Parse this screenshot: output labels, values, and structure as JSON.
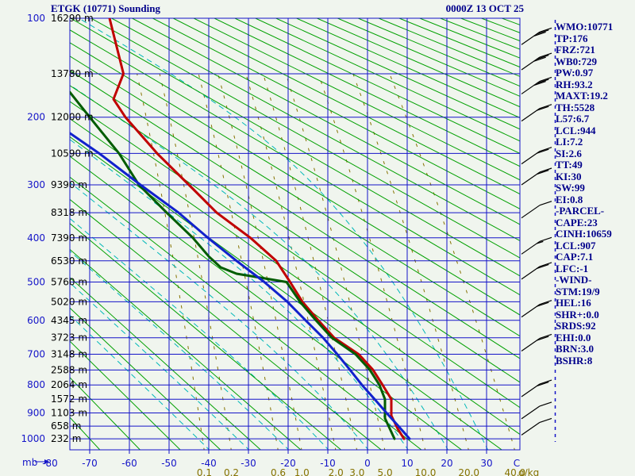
{
  "header": {
    "title": "ETGK (10771) Sounding",
    "datetime": "0000Z 13 OCT 25"
  },
  "stats_panel": {
    "lines": [
      "WMO:10771",
      "TP:176",
      "FRZ:721",
      "WB0:729",
      "PW:0.97",
      "RH:93.2",
      "MAXT:19.2",
      "TH:5528",
      "L57:6.7",
      "LCL:944",
      "LI:7.2",
      "SI:2.6",
      "TT:49",
      "KI:30",
      "SW:99",
      "EI:0.8",
      "-PARCEL-",
      "CAPE:23",
      "CINH:10659",
      "LCL:907",
      "CAP:7.1",
      "LFC:-1",
      "-WIND-",
      "STM:19/9",
      "HEL:16",
      "SHR+:0.0",
      "SRDS:92",
      "EHI:0.0",
      "BRN:3.0",
      "BSHR:8"
    ]
  },
  "chart_data": {
    "type": "line",
    "diagram": "stuve-sounding",
    "title": "ETGK (10771) Sounding",
    "x_axis": {
      "unit": "C",
      "ticks": [
        -80,
        -70,
        -60,
        -50,
        -40,
        -30,
        -20,
        -10,
        0,
        10,
        20,
        30
      ],
      "range": [
        -75,
        38.4
      ],
      "axis_prefix_label": "mb"
    },
    "y_axis": {
      "unit": "mb",
      "scale": "pressure^0.286 (stuve)",
      "range": [
        100,
        1050
      ],
      "ticks": [
        100,
        200,
        300,
        400,
        500,
        600,
        700,
        800,
        900,
        1000
      ],
      "gridlines_mb": [
        100,
        150,
        200,
        250,
        300,
        350,
        400,
        450,
        500,
        550,
        600,
        650,
        700,
        750,
        800,
        850,
        900,
        950,
        1000
      ]
    },
    "height_labels_m": [
      [
        100,
        16290
      ],
      [
        150,
        13780
      ],
      [
        200,
        12000
      ],
      [
        250,
        10590
      ],
      [
        300,
        9390
      ],
      [
        350,
        8318
      ],
      [
        400,
        7390
      ],
      [
        450,
        6530
      ],
      [
        500,
        5760
      ],
      [
        550,
        5020
      ],
      [
        600,
        4345
      ],
      [
        650,
        3723
      ],
      [
        700,
        3148
      ],
      [
        750,
        2588
      ],
      [
        800,
        2064
      ],
      [
        850,
        1572
      ],
      [
        900,
        1103
      ],
      [
        950,
        658
      ],
      [
        1000,
        232
      ]
    ],
    "height_unit": "m",
    "mixing_ratio_lines": {
      "values": [
        0.1,
        0.2,
        0.6,
        1,
        2,
        3,
        5,
        10,
        20,
        40
      ],
      "labels": [
        "0.1",
        "0.2",
        "0.6",
        "1.0",
        "2.0",
        "3.0",
        "5.0",
        "10.0",
        "20.0",
        "40.0"
      ],
      "unit": "g/kg",
      "color": "#857200"
    },
    "dry_adiabats_thetaC": {
      "min": -70,
      "max": 330,
      "step": 10,
      "color": "#00a000"
    },
    "moist_adiabats_thetawC": {
      "values": [
        -40,
        -30,
        -20,
        -10,
        0,
        10,
        20,
        30
      ],
      "color": "#00b8b8"
    },
    "series": [
      {
        "name": "temperature",
        "color": "#c00000",
        "points_p_mb_T_C": [
          [
            100,
            -65
          ],
          [
            150,
            -61.5
          ],
          [
            178,
            -64
          ],
          [
            200,
            -61
          ],
          [
            250,
            -53
          ],
          [
            300,
            -45
          ],
          [
            350,
            -38
          ],
          [
            400,
            -29.5
          ],
          [
            450,
            -23
          ],
          [
            500,
            -19.5
          ],
          [
            550,
            -16.4
          ],
          [
            600,
            -12.4
          ],
          [
            650,
            -8.4
          ],
          [
            700,
            -2.2
          ],
          [
            750,
            1.4
          ],
          [
            800,
            3.8
          ],
          [
            850,
            6
          ],
          [
            910,
            6
          ],
          [
            960,
            7.6
          ],
          [
            1000,
            9.2
          ]
        ]
      },
      {
        "name": "dewpoint",
        "color": "#005c00",
        "points_p_mb_T_C": [
          [
            170,
            -75
          ],
          [
            200,
            -70
          ],
          [
            250,
            -62.6
          ],
          [
            300,
            -57.6
          ],
          [
            350,
            -50.6
          ],
          [
            400,
            -44
          ],
          [
            440,
            -40
          ],
          [
            465,
            -37
          ],
          [
            480,
            -33
          ],
          [
            500,
            -20.4
          ],
          [
            550,
            -17
          ],
          [
            600,
            -13
          ],
          [
            650,
            -9
          ],
          [
            700,
            -3
          ],
          [
            750,
            0.6
          ],
          [
            800,
            3
          ],
          [
            850,
            4.4
          ],
          [
            920,
            4.4
          ],
          [
            1000,
            6.8
          ]
        ]
      },
      {
        "name": "parcel",
        "color": "#1122cc",
        "points_p_mb_T_C": [
          [
            221,
            -75
          ],
          [
            250,
            -67.6
          ],
          [
            300,
            -57.2
          ],
          [
            350,
            -47.6
          ],
          [
            400,
            -40.2
          ],
          [
            450,
            -33
          ],
          [
            500,
            -26
          ],
          [
            550,
            -20.2
          ],
          [
            600,
            -15.6
          ],
          [
            650,
            -11.2
          ],
          [
            700,
            -7.6
          ],
          [
            750,
            -4.4
          ],
          [
            800,
            -1.4
          ],
          [
            850,
            1.8
          ],
          [
            900,
            4.8
          ],
          [
            950,
            7.8
          ],
          [
            1000,
            10.6
          ]
        ]
      }
    ],
    "wind_barbs": [
      {
        "p": 122,
        "full": 3
      },
      {
        "p": 146,
        "full": 3
      },
      {
        "p": 172,
        "full": 3
      },
      {
        "p": 205,
        "full": 2
      },
      {
        "p": 266,
        "full": 2
      },
      {
        "p": 300,
        "full": 2
      },
      {
        "p": 360,
        "full": 1
      },
      {
        "p": 435,
        "full": 1,
        "half": 1
      },
      {
        "p": 493,
        "full": 2
      },
      {
        "p": 591,
        "full": 2
      },
      {
        "p": 690,
        "full": 2
      },
      {
        "p": 841,
        "full": 2
      },
      {
        "p": 922,
        "full": 1
      },
      {
        "p": 985,
        "full": 1
      }
    ],
    "grid_color": "#1414c8",
    "background_color": "#f0f5ee"
  }
}
